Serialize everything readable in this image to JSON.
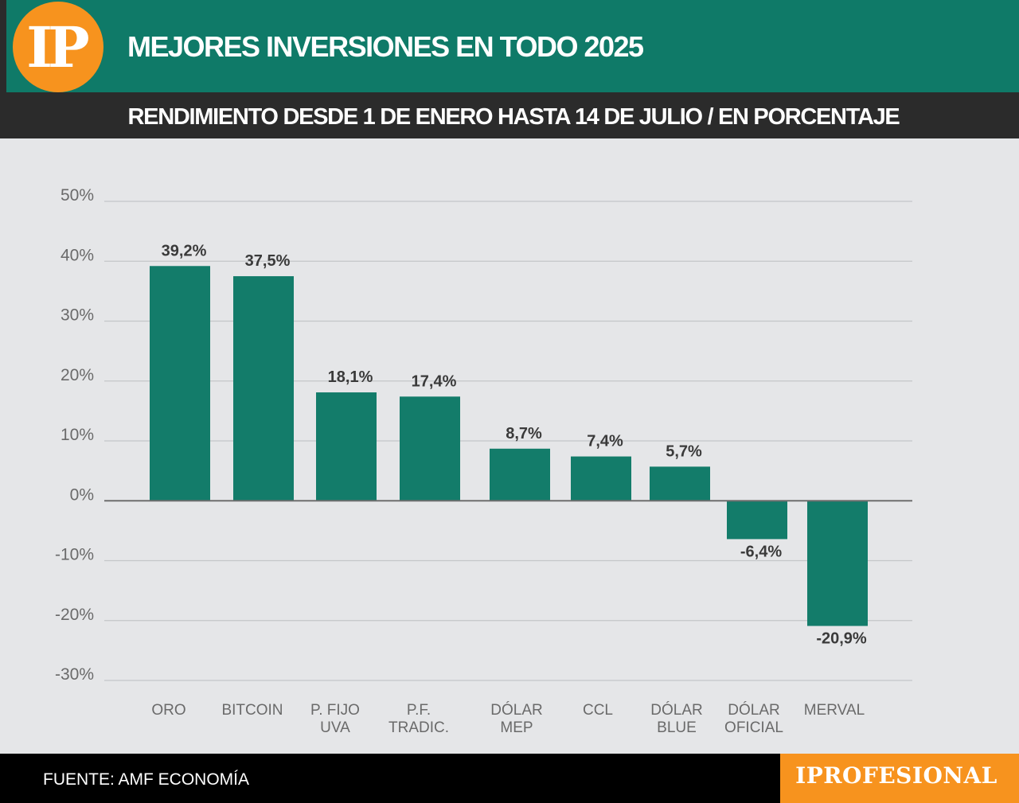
{
  "header": {
    "logo_text": "IP",
    "title": "MEJORES INVERSIONES EN TODO 2025",
    "subtitle": "RENDIMIENTO DESDE 1 DE ENERO HASTA 14 DE JULIO / EN PORCENTAJE"
  },
  "footer": {
    "source": "FUENTE: AMF ECONOMÍA",
    "brand": "IPROFESIONAL"
  },
  "colors": {
    "header_bg": "#0f7a68",
    "subheader_bg": "#2b2b2b",
    "bar": "#137c6a",
    "logo": "#f7931e",
    "background": "#e5e6e8"
  },
  "chart_data": {
    "type": "bar",
    "categories": [
      [
        "ORO"
      ],
      [
        "BITCOIN"
      ],
      [
        "P. FIJO",
        "UVA"
      ],
      [
        "P.F.",
        "TRADIC."
      ],
      [
        "DÓLAR",
        "MEP"
      ],
      [
        "CCL"
      ],
      [
        "DÓLAR",
        "BLUE"
      ],
      [
        "DÓLAR",
        "OFICIAL"
      ],
      [
        "MERVAL"
      ]
    ],
    "values": [
      39.2,
      37.5,
      18.1,
      17.4,
      8.7,
      7.4,
      5.7,
      -6.4,
      -20.9
    ],
    "value_labels": [
      "39,2%",
      "37,5%",
      "18,1%",
      "17,4%",
      "8,7%",
      "7,4%",
      "5,7%",
      "-6,4%",
      "-20,9%"
    ],
    "yticks": [
      50,
      40,
      30,
      20,
      10,
      0,
      -10,
      -20,
      -30
    ],
    "ytick_labels": [
      "50%",
      "40%",
      "30%",
      "20%",
      "10%",
      "0%",
      "-10%",
      "-20%",
      "-30%"
    ],
    "ylim": [
      -30,
      50
    ],
    "grid": true,
    "legend": "none"
  }
}
